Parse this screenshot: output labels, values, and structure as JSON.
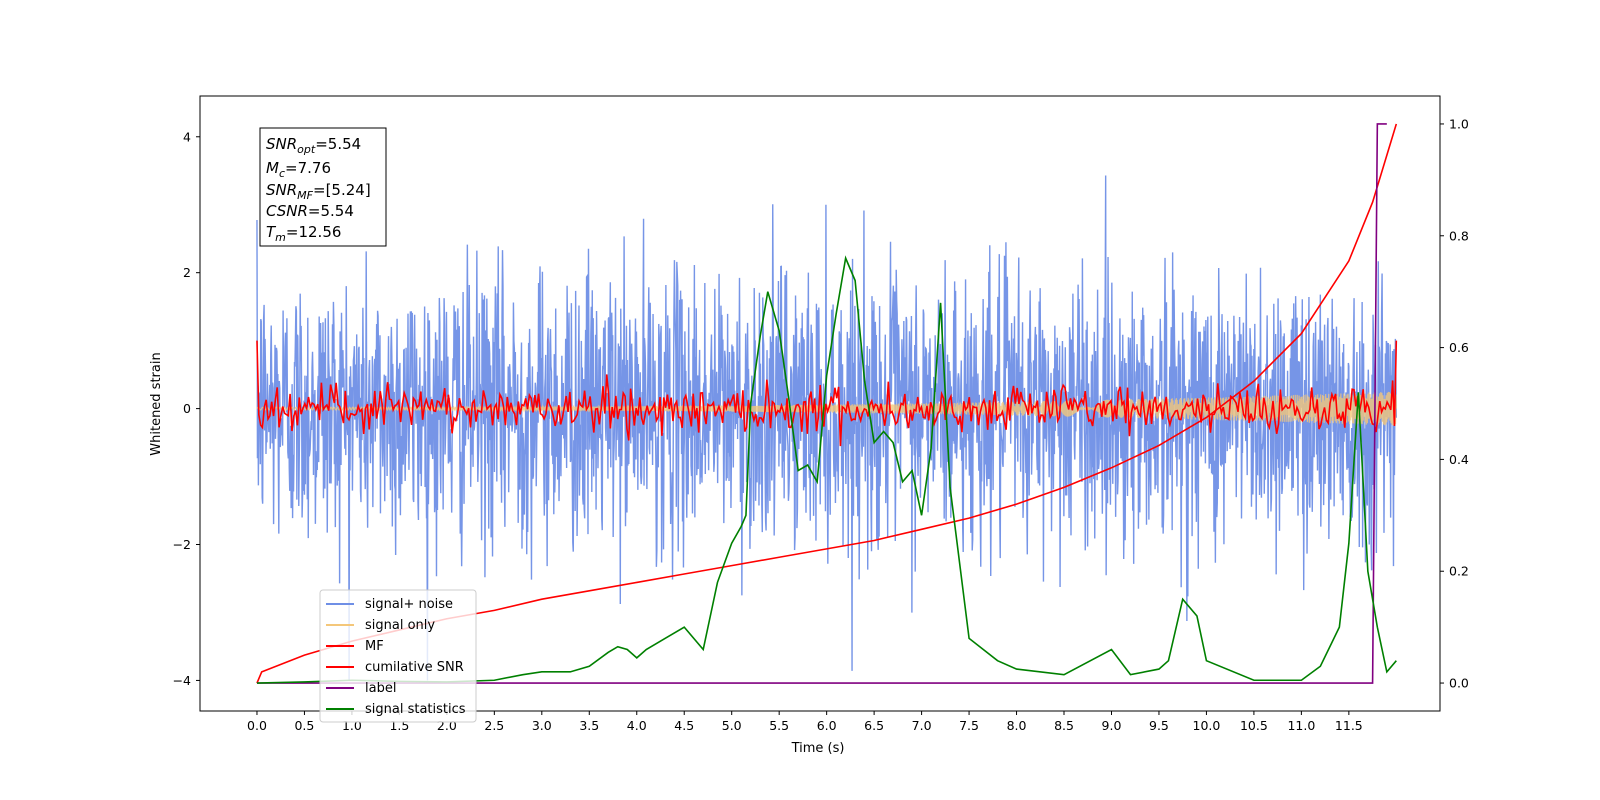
{
  "chart_data": {
    "type": "line",
    "title": "",
    "xlabel": "Time (s)",
    "ylabel": "Whitened strain",
    "xlim": [
      -0.6,
      12.46
    ],
    "ylim": [
      -4.45,
      4.6
    ],
    "y2lim": [
      -0.05,
      1.05
    ],
    "x_ticks": [
      "0.0",
      "0.5",
      "1.0",
      "1.5",
      "2.0",
      "2.5",
      "3.0",
      "3.5",
      "4.0",
      "4.5",
      "5.0",
      "5.5",
      "6.0",
      "6.5",
      "7.0",
      "7.5",
      "8.0",
      "8.5",
      "9.0",
      "9.5",
      "10.0",
      "10.5",
      "11.0",
      "11.5"
    ],
    "y_ticks": [
      "4",
      "2",
      "0",
      "−2",
      "−4"
    ],
    "y2_ticks": [
      "1.0",
      "0.8",
      "0.6",
      "0.4",
      "0.2",
      "0.0"
    ],
    "grid": false,
    "legend_position": "lower-left",
    "annotation": {
      "lines": [
        {
          "base": "SNR",
          "sub": "opt",
          "value": "=5.54"
        },
        {
          "base": "M",
          "sub": "c",
          "value": "=7.76"
        },
        {
          "base": "SNR",
          "sub": "MF",
          "value": "=[5.24]"
        },
        {
          "base": "CSNR",
          "sub": "",
          "value": "=5.54"
        },
        {
          "base": "T",
          "sub": "m",
          "value": "=12.56"
        }
      ]
    },
    "series": [
      {
        "name": "signal+ noise",
        "color": "#6f8fe6",
        "axis": "left",
        "description_range": [
          -2.7,
          2.8
        ],
        "x_range": [
          0.0,
          12.0
        ]
      },
      {
        "name": "signal only",
        "color": "#f4c77a",
        "axis": "left",
        "amplitude_start": 0.02,
        "amplitude_end": 0.25
      },
      {
        "name": "MF",
        "color": "#ff0000",
        "axis": "left",
        "start_value": 1.0,
        "end_value": 1.0
      },
      {
        "name": "cumilative SNR",
        "color": "#ff0000",
        "axis": "right",
        "x": [
          0.0,
          0.05,
          0.5,
          1.0,
          1.5,
          2.0,
          2.5,
          3.0,
          3.5,
          4.0,
          4.5,
          5.0,
          5.5,
          6.0,
          6.5,
          7.0,
          7.5,
          8.0,
          8.5,
          9.0,
          9.5,
          10.0,
          10.5,
          11.0,
          11.5,
          11.75,
          12.0
        ],
        "y": [
          0.0,
          0.02,
          0.05,
          0.075,
          0.095,
          0.115,
          0.13,
          0.15,
          0.165,
          0.18,
          0.195,
          0.21,
          0.225,
          0.24,
          0.255,
          0.275,
          0.295,
          0.32,
          0.35,
          0.385,
          0.425,
          0.475,
          0.54,
          0.625,
          0.755,
          0.86,
          1.0
        ]
      },
      {
        "name": "label",
        "color": "#800080",
        "axis": "right",
        "x": [
          0.0,
          11.75,
          11.8,
          11.9,
          11.9
        ],
        "y": [
          0.0,
          0.0,
          1.0,
          1.0,
          1.0
        ]
      },
      {
        "name": "signal statistics",
        "color": "#008000",
        "axis": "right",
        "x": [
          0.0,
          0.5,
          1.0,
          1.5,
          2.0,
          2.5,
          2.8,
          3.0,
          3.3,
          3.5,
          3.7,
          3.8,
          3.9,
          4.0,
          4.1,
          4.3,
          4.5,
          4.7,
          4.85,
          5.0,
          5.1,
          5.15,
          5.2,
          5.3,
          5.38,
          5.5,
          5.6,
          5.7,
          5.8,
          5.9,
          6.0,
          6.1,
          6.2,
          6.3,
          6.4,
          6.5,
          6.6,
          6.7,
          6.8,
          6.9,
          7.0,
          7.1,
          7.2,
          7.3,
          7.5,
          7.8,
          8.0,
          8.5,
          9.0,
          9.2,
          9.5,
          9.6,
          9.75,
          9.9,
          10.0,
          10.5,
          11.0,
          11.2,
          11.4,
          11.5,
          11.6,
          11.7,
          11.8,
          11.9,
          12.0
        ],
        "y": [
          0.0,
          0.002,
          0.005,
          0.003,
          0.002,
          0.005,
          0.015,
          0.02,
          0.02,
          0.03,
          0.055,
          0.065,
          0.06,
          0.045,
          0.06,
          0.08,
          0.1,
          0.06,
          0.18,
          0.25,
          0.28,
          0.3,
          0.5,
          0.62,
          0.7,
          0.63,
          0.51,
          0.38,
          0.39,
          0.36,
          0.55,
          0.66,
          0.76,
          0.72,
          0.54,
          0.43,
          0.45,
          0.43,
          0.36,
          0.38,
          0.3,
          0.42,
          0.68,
          0.35,
          0.08,
          0.04,
          0.025,
          0.015,
          0.06,
          0.015,
          0.025,
          0.04,
          0.15,
          0.12,
          0.04,
          0.005,
          0.005,
          0.03,
          0.1,
          0.25,
          0.52,
          0.2,
          0.1,
          0.02,
          0.04
        ]
      }
    ]
  }
}
